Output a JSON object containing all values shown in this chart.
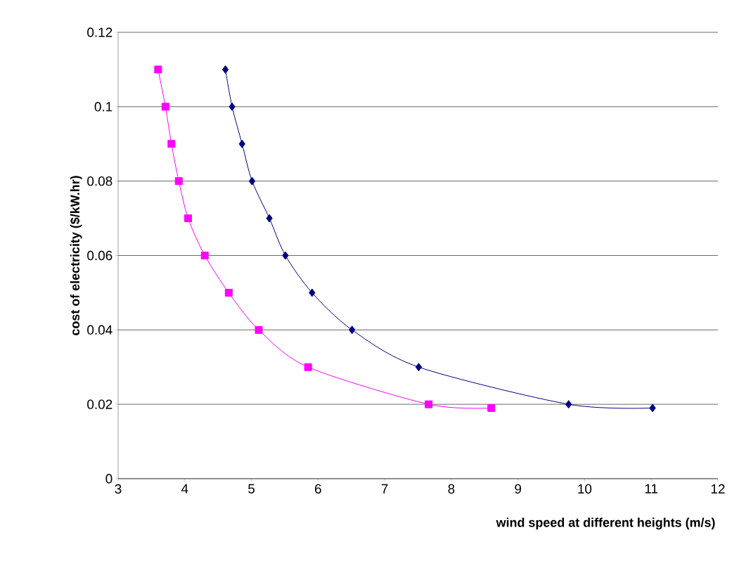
{
  "chart_data": {
    "type": "line",
    "xlabel": "wind speed at different heights (m/s)",
    "ylabel": "cost of electricity ($/kW.hr)",
    "xlim": [
      3,
      12
    ],
    "xticks": [
      3,
      4,
      5,
      6,
      7,
      8,
      9,
      10,
      11,
      12
    ],
    "ylim": [
      0,
      0.12
    ],
    "yticks": [
      0,
      0.02,
      0.04,
      0.06,
      0.08,
      0.1,
      0.12
    ],
    "grid": "y",
    "series": [
      {
        "color": "#ff00ff",
        "marker": "square",
        "x": [
          3.6,
          3.71,
          3.8,
          3.91,
          4.05,
          4.3,
          4.66,
          5.11,
          5.85,
          7.66,
          8.6
        ],
        "values": [
          0.11,
          0.1,
          0.09,
          0.08,
          0.07,
          0.06,
          0.05,
          0.04,
          0.03,
          0.02,
          0.019
        ]
      },
      {
        "color": "#000080",
        "marker": "diamond",
        "x": [
          4.61,
          4.71,
          4.86,
          5.01,
          5.27,
          5.51,
          5.91,
          6.51,
          7.51,
          9.76,
          11.02
        ],
        "values": [
          0.11,
          0.1,
          0.09,
          0.08,
          0.07,
          0.06,
          0.05,
          0.04,
          0.03,
          0.02,
          0.019
        ]
      }
    ]
  }
}
